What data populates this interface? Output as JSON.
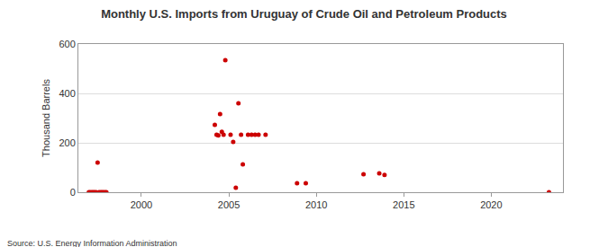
{
  "chart_data": {
    "type": "scatter",
    "title": "Monthly U.S. Imports from Uruguay of Crude Oil and Petroleum Products",
    "y_label": "Thousand Barrels",
    "annotations": [
      "Source: U.S. Energy Information Administration"
    ],
    "x": [
      1997.0,
      1997.08,
      1997.17,
      1997.25,
      1997.33,
      1997.42,
      1997.5,
      1997.58,
      1997.67,
      1997.75,
      1997.83,
      1997.92,
      1998.0,
      2004.2,
      2004.3,
      2004.4,
      2004.5,
      2004.6,
      2004.7,
      2004.8,
      2005.1,
      2005.25,
      2005.4,
      2005.55,
      2005.7,
      2005.8,
      2006.1,
      2006.3,
      2006.5,
      2006.7,
      2007.1,
      2008.9,
      2009.4,
      2012.7,
      2013.6,
      2013.9,
      2023.3
    ],
    "values": [
      0,
      0,
      0,
      0,
      0,
      0,
      120,
      0,
      0,
      0,
      0,
      0,
      0,
      273,
      233,
      230,
      316,
      245,
      233,
      535,
      233,
      204,
      18,
      360,
      233,
      113,
      233,
      233,
      233,
      233,
      233,
      36,
      36,
      73,
      76,
      70,
      0
    ],
    "color": "#cc0000",
    "marker": "circle",
    "xlim": [
      1996.4,
      2024.1
    ],
    "xticks": [
      2000,
      2005,
      2010,
      2015,
      2020
    ],
    "ylim": [
      0,
      600
    ],
    "yticks": [
      0,
      200,
      400,
      600
    ],
    "grid": true
  }
}
